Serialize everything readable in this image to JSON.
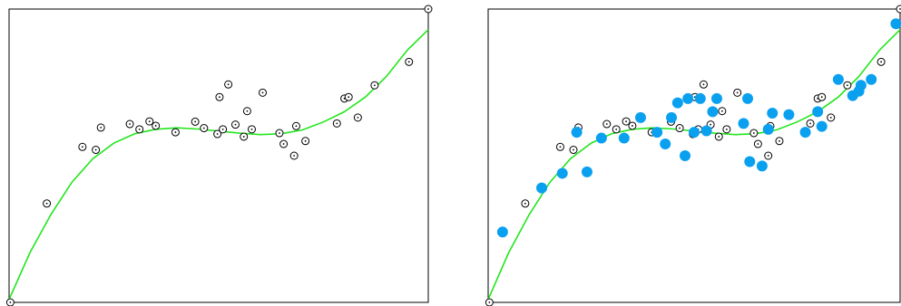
{
  "chart_data": [
    {
      "type": "scatter",
      "title": "",
      "xlabel": "",
      "ylabel": "",
      "xlim": [
        0,
        1
      ],
      "ylim": [
        0,
        1
      ],
      "grid": false,
      "series": [
        {
          "kind": "points",
          "marker": "open-circle-dot",
          "color": "#000000",
          "x": [
            0.003,
            0.09,
            0.175,
            0.207,
            0.219,
            0.288,
            0.311,
            0.335,
            0.35,
            0.397,
            0.444,
            0.465,
            0.497,
            0.502,
            0.51,
            0.523,
            0.54,
            0.56,
            0.568,
            0.579,
            0.605,
            0.645,
            0.655,
            0.68,
            0.685,
            0.707,
            0.782,
            0.8,
            0.81,
            0.832,
            0.872,
            0.954,
            1.0
          ],
          "y": [
            0.0,
            0.337,
            0.53,
            0.52,
            0.596,
            0.608,
            0.59,
            0.617,
            0.602,
            0.58,
            0.616,
            0.594,
            0.574,
            0.7,
            0.59,
            0.743,
            0.606,
            0.565,
            0.652,
            0.59,
            0.715,
            0.577,
            0.54,
            0.5,
            0.601,
            0.55,
            0.61,
            0.695,
            0.7,
            0.63,
            0.74,
            0.82,
            1.0
          ]
        },
        {
          "kind": "curve",
          "color": "#22e61e",
          "x": [
            0.0,
            0.05,
            0.1,
            0.15,
            0.2,
            0.25,
            0.3,
            0.35,
            0.4,
            0.45,
            0.5,
            0.55,
            0.6,
            0.65,
            0.7,
            0.75,
            0.8,
            0.85,
            0.9,
            0.95,
            1.0
          ],
          "y": [
            0.01,
            0.17,
            0.3,
            0.41,
            0.49,
            0.543,
            0.575,
            0.59,
            0.595,
            0.591,
            0.584,
            0.577,
            0.572,
            0.575,
            0.588,
            0.615,
            0.65,
            0.7,
            0.77,
            0.86,
            0.93
          ]
        }
      ]
    },
    {
      "type": "scatter",
      "title": "",
      "xlabel": "",
      "ylabel": "",
      "xlim": [
        0,
        1
      ],
      "ylim": [
        0,
        1
      ],
      "grid": false,
      "series": [
        {
          "kind": "points",
          "marker": "open-circle-dot",
          "color": "#000000",
          "x": [
            0.003,
            0.09,
            0.175,
            0.207,
            0.219,
            0.288,
            0.311,
            0.335,
            0.35,
            0.397,
            0.444,
            0.465,
            0.497,
            0.502,
            0.51,
            0.523,
            0.54,
            0.56,
            0.568,
            0.579,
            0.605,
            0.645,
            0.655,
            0.68,
            0.685,
            0.707,
            0.782,
            0.8,
            0.81,
            0.832,
            0.872,
            0.954,
            1.0
          ],
          "y": [
            0.0,
            0.337,
            0.53,
            0.52,
            0.596,
            0.608,
            0.59,
            0.617,
            0.602,
            0.58,
            0.616,
            0.594,
            0.574,
            0.7,
            0.59,
            0.743,
            0.606,
            0.565,
            0.652,
            0.59,
            0.715,
            0.577,
            0.54,
            0.5,
            0.601,
            0.55,
            0.61,
            0.695,
            0.7,
            0.63,
            0.74,
            0.82,
            1.0
          ]
        },
        {
          "kind": "points",
          "marker": "filled-circle",
          "color": "#0aa0f0",
          "x": [
            0.035,
            0.13,
            0.18,
            0.215,
            0.24,
            0.275,
            0.33,
            0.37,
            0.43,
            0.41,
            0.445,
            0.46,
            0.478,
            0.485,
            0.5,
            0.515,
            0.53,
            0.545,
            0.555,
            0.62,
            0.63,
            0.635,
            0.665,
            0.68,
            0.69,
            0.73,
            0.77,
            0.8,
            0.81,
            0.85,
            0.885,
            0.9,
            0.905,
            0.93,
            0.99
          ],
          "y": [
            0.24,
            0.39,
            0.44,
            0.58,
            0.445,
            0.56,
            0.56,
            0.63,
            0.54,
            0.58,
            0.63,
            0.68,
            0.5,
            0.695,
            0.58,
            0.695,
            0.585,
            0.65,
            0.695,
            0.61,
            0.695,
            0.48,
            0.465,
            0.59,
            0.645,
            0.64,
            0.58,
            0.65,
            0.6,
            0.76,
            0.705,
            0.72,
            0.74,
            0.76,
            0.95
          ]
        },
        {
          "kind": "curve",
          "color": "#22e61e",
          "x": [
            0.0,
            0.05,
            0.1,
            0.15,
            0.2,
            0.25,
            0.3,
            0.35,
            0.4,
            0.45,
            0.5,
            0.55,
            0.6,
            0.65,
            0.7,
            0.75,
            0.8,
            0.85,
            0.9,
            0.95,
            1.0
          ],
          "y": [
            0.01,
            0.17,
            0.3,
            0.41,
            0.49,
            0.543,
            0.575,
            0.59,
            0.595,
            0.591,
            0.584,
            0.577,
            0.572,
            0.575,
            0.588,
            0.615,
            0.65,
            0.7,
            0.77,
            0.86,
            0.93
          ]
        }
      ]
    }
  ]
}
